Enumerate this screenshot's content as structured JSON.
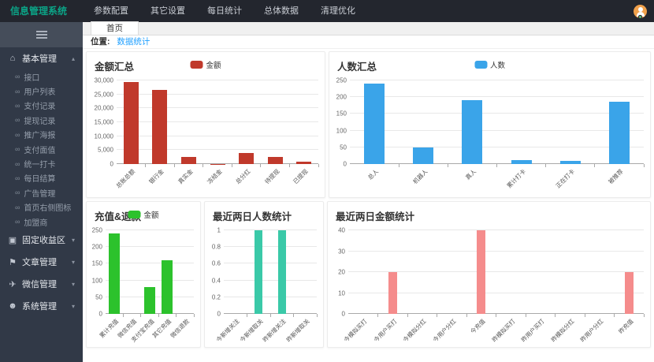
{
  "topbar": {
    "title": "信息管理系统",
    "menu": [
      "参数配置",
      "其它设置",
      "每日统计",
      "总体数据",
      "清理优化"
    ],
    "avatar": {
      "icon": "user-avatar-icon",
      "bg": "#f0a04b",
      "status_color": "#5FB878"
    }
  },
  "tabbar": {
    "active_tab": "首页"
  },
  "breadcrumb": {
    "label": "位置:",
    "current": "数据统计"
  },
  "sidebar": {
    "toggle_icon": "menu-toggle-icon",
    "child_icon": {
      "name": "link-icon",
      "glyph": "∞"
    },
    "groups": [
      {
        "label": "基本管理",
        "icon": "home-icon",
        "glyph": "⌂",
        "expanded": true,
        "children": [
          "接口",
          "用户列表",
          "支付记录",
          "提现记录",
          "推广海报",
          "支付面值",
          "统一打卡",
          "每日结算",
          "广告管理",
          "首页右侧图标",
          "加盟商"
        ]
      },
      {
        "label": "固定收益区",
        "icon": "grid-icon",
        "glyph": "▣",
        "expanded": false
      },
      {
        "label": "文章管理",
        "icon": "flag-icon",
        "glyph": "⚑",
        "expanded": false
      },
      {
        "label": "微信管理",
        "icon": "send-icon",
        "glyph": "✈",
        "expanded": false
      },
      {
        "label": "系统管理",
        "icon": "user-icon",
        "glyph": "☻",
        "expanded": false
      }
    ]
  },
  "chart_data": [
    {
      "type": "bar",
      "title": "金额汇总",
      "legend": "金额",
      "color": "#c0392b",
      "categories": [
        "总账总额",
        "银行金",
        "真实金",
        "冻结金",
        "总分红",
        "待提现",
        "已提现"
      ],
      "values": [
        29500,
        26700,
        2600,
        50,
        4100,
        2500,
        800
      ],
      "ylim": [
        0,
        30000
      ],
      "yticks": [
        "0",
        "5,000",
        "10,000",
        "15,000",
        "20,000",
        "25,000",
        "30,000"
      ],
      "grid": true,
      "legend_position": "top-center"
    },
    {
      "type": "bar",
      "title": "人数汇总",
      "legend": "人数",
      "color": "#3aa4e9",
      "categories": [
        "总人",
        "机器人",
        "真人",
        "累计打卡",
        "正在打卡",
        "被推荐"
      ],
      "values": [
        240,
        50,
        192,
        11,
        9,
        186
      ],
      "ylim": [
        0,
        250
      ],
      "yticks": [
        "0",
        "50",
        "100",
        "150",
        "200",
        "250"
      ],
      "grid": true,
      "legend_position": "top-center"
    },
    {
      "type": "bar",
      "title": "充值&退款",
      "legend": "金额",
      "color": "#2cc22c",
      "categories": [
        "累计充值",
        "微信充值",
        "支付宝充值",
        "其它充值",
        "微信退款"
      ],
      "values": [
        240,
        0,
        80,
        160,
        0
      ],
      "ylim": [
        0,
        250
      ],
      "yticks": [
        "0",
        "50",
        "100",
        "150",
        "200",
        "250"
      ],
      "grid": true,
      "legend_position": "top-center"
    },
    {
      "type": "bar",
      "title": "最近两日人数统计",
      "legend": null,
      "color": "#3ac9a8",
      "categories": [
        "今新增关注",
        "今新增取关",
        "昨新增关注",
        "昨新增取关"
      ],
      "values": [
        0,
        1,
        1,
        0
      ],
      "ylim": [
        0,
        1
      ],
      "yticks": [
        "0",
        "0.2",
        "0.4",
        "0.6",
        "0.8",
        "1"
      ],
      "grid": true
    },
    {
      "type": "bar",
      "title": "最近两日金额统计",
      "legend": null,
      "color": "#f58c8c",
      "categories": [
        "今模拟买打",
        "今用户买打",
        "今模拟分红",
        "今用户分红",
        "今充值",
        "昨模拟买打",
        "昨用户买打",
        "昨模拟分红",
        "昨用户分红",
        "昨充值"
      ],
      "values": [
        0,
        20,
        0,
        0,
        40,
        0,
        0,
        0,
        0,
        20
      ],
      "ylim": [
        0,
        40
      ],
      "yticks": [
        "0",
        "10",
        "20",
        "30",
        "40"
      ],
      "grid": true
    }
  ]
}
